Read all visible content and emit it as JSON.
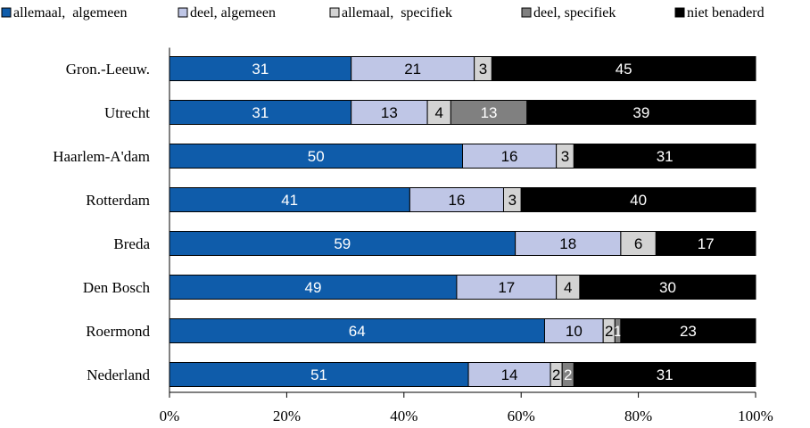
{
  "chart_data": {
    "type": "bar",
    "orientation": "horizontal",
    "stacked": true,
    "stack_mode": "percent",
    "categories": [
      "Gron.-Leeuw.",
      "Utrecht",
      "Haarlem-A'dam",
      "Rotterdam",
      "Breda",
      "Den Bosch",
      "Roermond",
      "Nederland"
    ],
    "series": [
      {
        "name": "allemaal,  algemeen",
        "color": "#0F5CAA",
        "label_color": "#ffffff",
        "values": [
          31,
          31,
          50,
          41,
          59,
          49,
          64,
          51
        ]
      },
      {
        "name": "deel, algemeen",
        "color": "#BFC6E6",
        "label_color": "#000000",
        "values": [
          21,
          13,
          16,
          16,
          18,
          17,
          10,
          14
        ]
      },
      {
        "name": "allemaal,  specifiek",
        "color": "#D3D3D3",
        "label_color": "#000000",
        "values": [
          3,
          4,
          3,
          3,
          6,
          4,
          2,
          2
        ]
      },
      {
        "name": "deel, specifiek",
        "color": "#808080",
        "label_color": "#ffffff",
        "values": [
          0,
          13,
          0,
          0,
          0,
          0,
          1,
          2
        ]
      },
      {
        "name": "niet benaderd",
        "color": "#000000",
        "label_color": "#ffffff",
        "values": [
          45,
          39,
          31,
          40,
          17,
          30,
          23,
          31
        ]
      }
    ],
    "xlim": [
      0,
      100
    ],
    "xticks": [
      "0%",
      "20%",
      "40%",
      "60%",
      "80%",
      "100%"
    ],
    "legend_position": "top",
    "grid": false
  }
}
